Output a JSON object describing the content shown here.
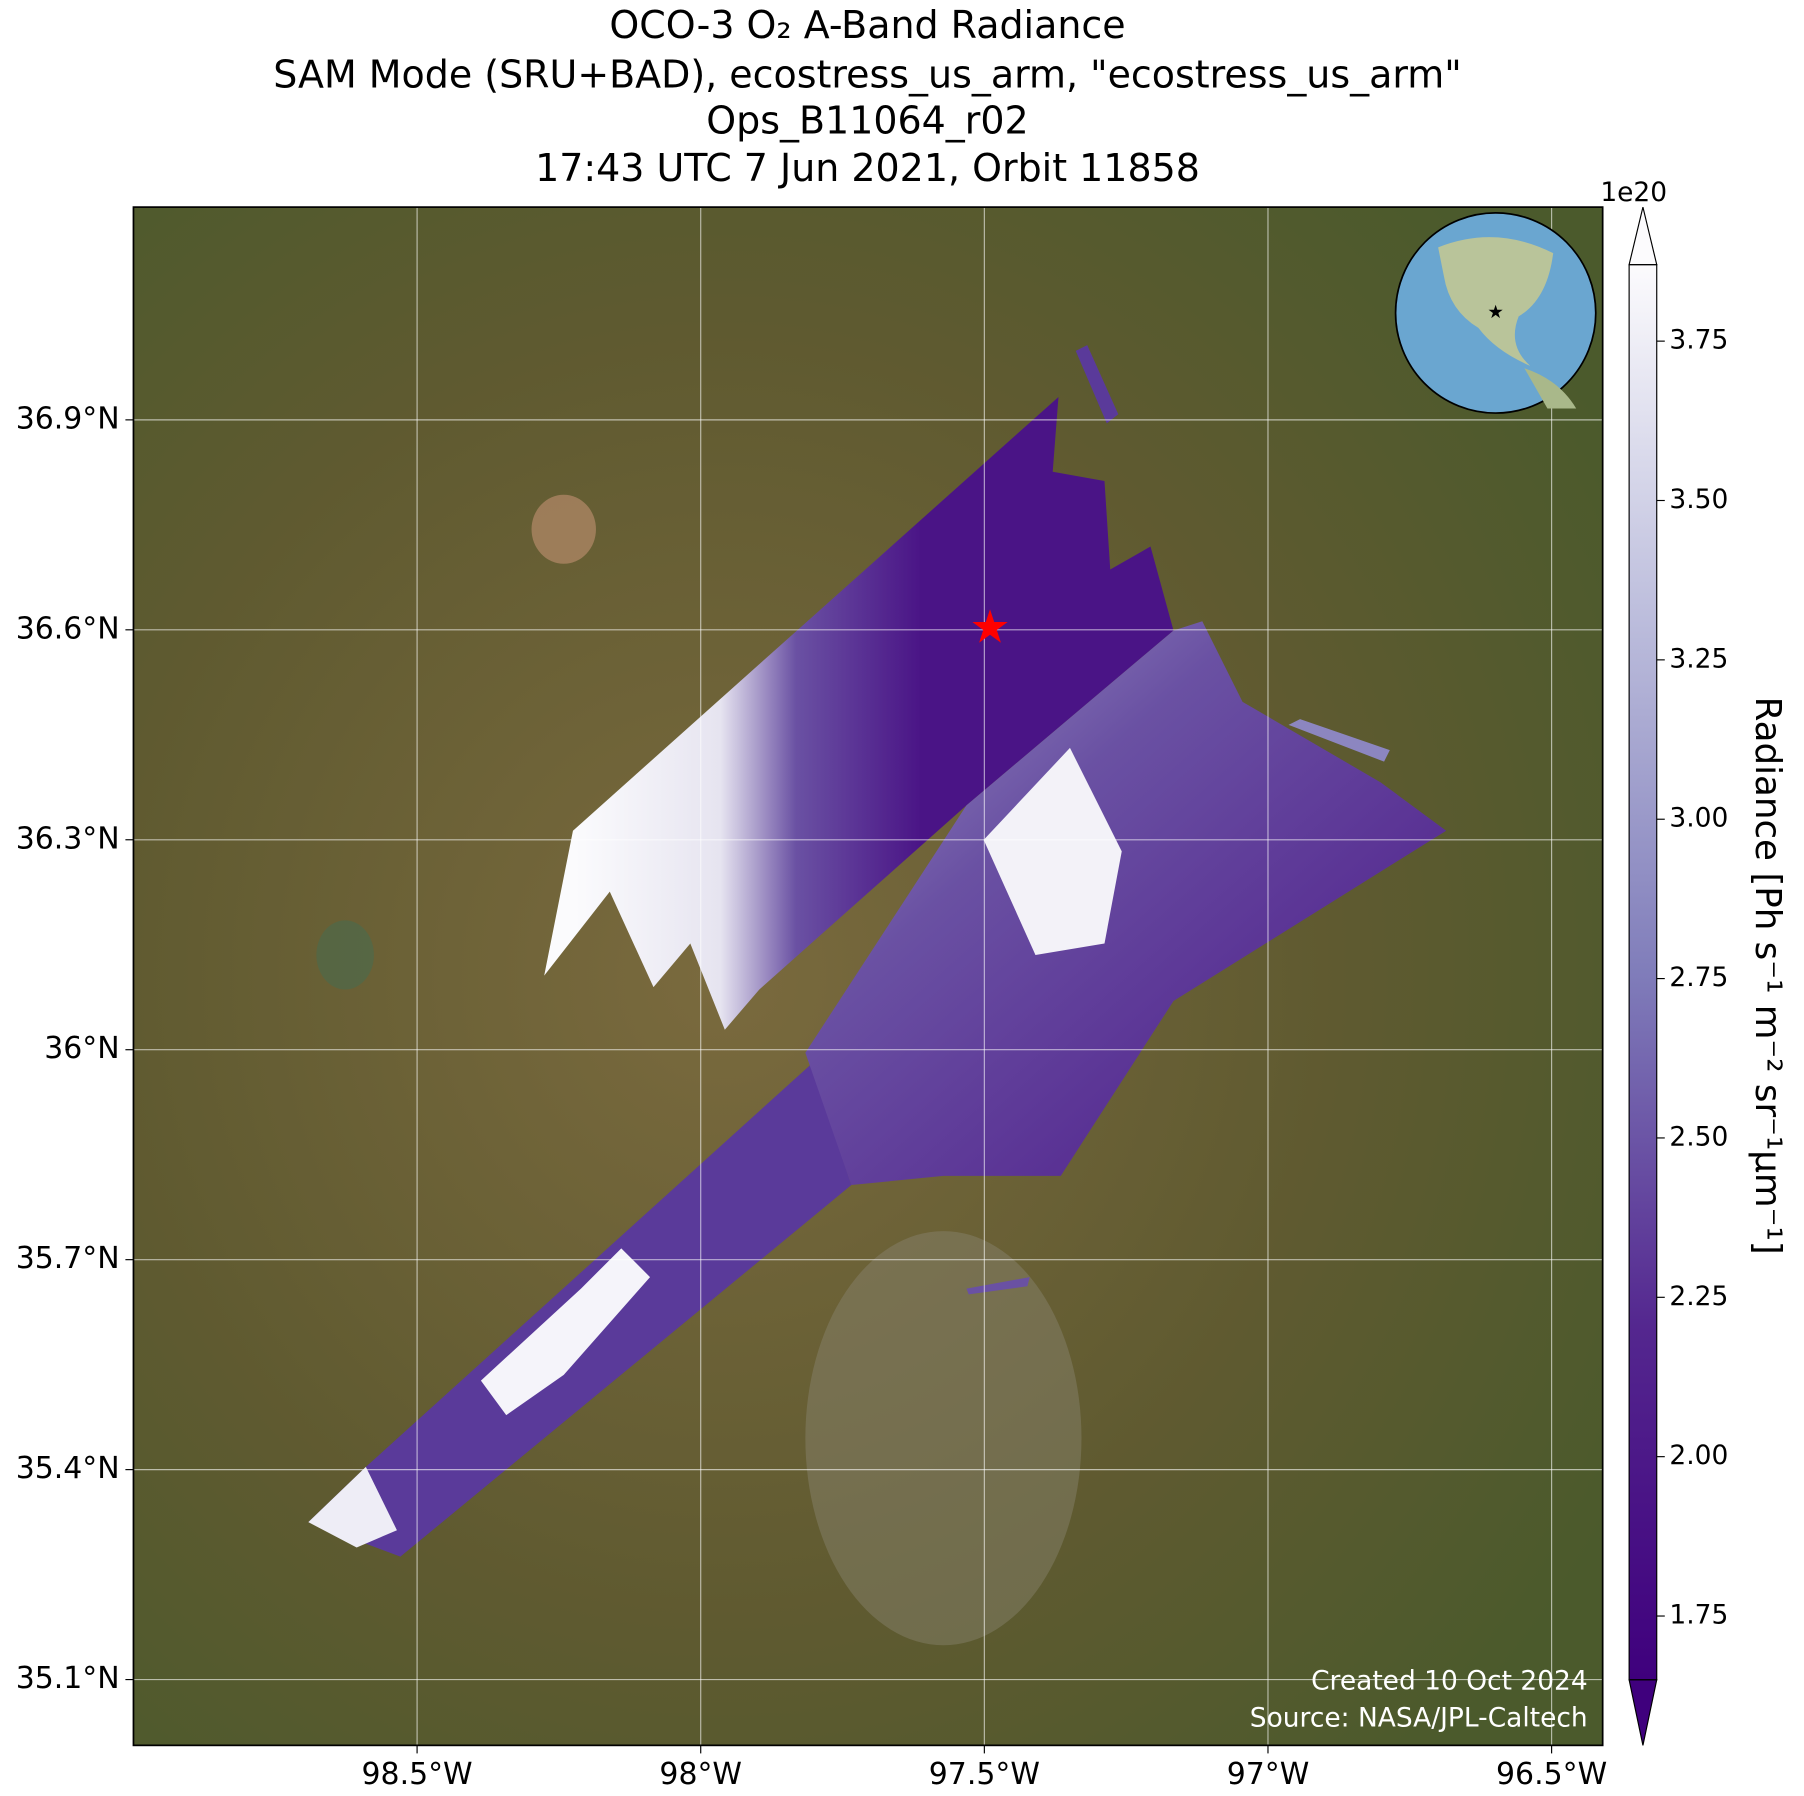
{
  "chart_data": {
    "type": "map",
    "title": [
      "OCO-3 O₂ A-Band Radiance",
      "SAM Mode (SRU+BAD), ecostress_us_arm, \"ecostress_us_arm\"",
      "Ops_B11064_r02",
      "17:43 UTC 7 Jun 2021, Orbit 11858"
    ],
    "xlim": [
      -99.0,
      -96.41
    ],
    "ylim": [
      35.006,
      37.204
    ],
    "xticks": [
      {
        "value": -98.5,
        "label": "98.5°W"
      },
      {
        "value": -98,
        "label": "98°W"
      },
      {
        "value": -97.5,
        "label": "97.5°W"
      },
      {
        "value": -97,
        "label": "97°W"
      },
      {
        "value": -96.5,
        "label": "96.5°W"
      }
    ],
    "yticks": [
      {
        "value": 35.1,
        "label": "35.1°N"
      },
      {
        "value": 35.4,
        "label": "35.4°N"
      },
      {
        "value": 35.7,
        "label": "35.7°N"
      },
      {
        "value": 36,
        "label": "36°N"
      },
      {
        "value": 36.3,
        "label": "36.3°N"
      },
      {
        "value": 36.6,
        "label": "36.6°N"
      },
      {
        "value": 36.9,
        "label": "36.9°N"
      }
    ],
    "grid": true,
    "site": {
      "lon": -97.49,
      "lat": 36.605,
      "color": "#ff0000"
    },
    "colorbar": {
      "label": "Radiance [Ph s⁻¹ m⁻² sr⁻¹μm⁻¹]",
      "offset_label": "1e20",
      "clim": [
        1.65,
        3.87
      ],
      "ticks": [
        1.75,
        {
          "value": 2,
          "label": "2.00"
        },
        2.25,
        {
          "value": 2.5,
          "label": "2.50"
        },
        2.75,
        {
          "value": 3,
          "label": "3.00"
        },
        3.25,
        {
          "value": 3.5,
          "label": "3.50"
        },
        3.75
      ]
    },
    "credits": [
      "Created 10 Oct 2024",
      "Source: NASA/JPL-Caltech"
    ]
  }
}
